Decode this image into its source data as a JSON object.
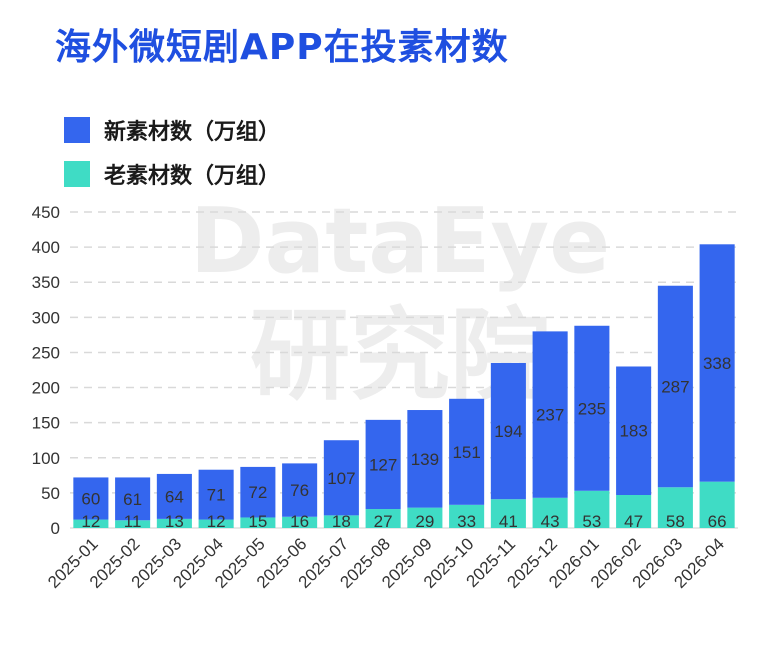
{
  "title": "海外微短剧APP在投素材数",
  "watermark": {
    "line1": "DataEye",
    "line2": "研究院"
  },
  "colors": {
    "title": "#1f4fe0",
    "new": "#3466ee",
    "old": "#3fdcc5",
    "grid": "#d9d9d9"
  },
  "chart_data": {
    "type": "bar",
    "stacked": true,
    "title": "海外微短剧APP在投素材数",
    "categories": [
      "2025-01",
      "2025-02",
      "2025-03",
      "2025-04",
      "2025-05",
      "2025-06",
      "2025-07",
      "2025-08",
      "2025-09",
      "2025-10",
      "2025-11",
      "2025-12",
      "2026-01",
      "2026-02",
      "2026-03",
      "2026-04"
    ],
    "series": [
      {
        "name": "老素材数（万组）",
        "values": [
          12,
          11,
          13,
          12,
          15,
          16,
          18,
          27,
          29,
          33,
          41,
          43,
          53,
          47,
          58,
          66
        ]
      },
      {
        "name": "新素材数（万组）",
        "values": [
          60,
          61,
          64,
          71,
          72,
          76,
          107,
          127,
          139,
          151,
          194,
          237,
          235,
          183,
          287,
          338
        ]
      }
    ],
    "ylim": [
      0,
      450
    ],
    "yticks": [
      0,
      50,
      100,
      150,
      200,
      250,
      300,
      350,
      400,
      450
    ],
    "grid": true,
    "legend_position": "top-left"
  }
}
